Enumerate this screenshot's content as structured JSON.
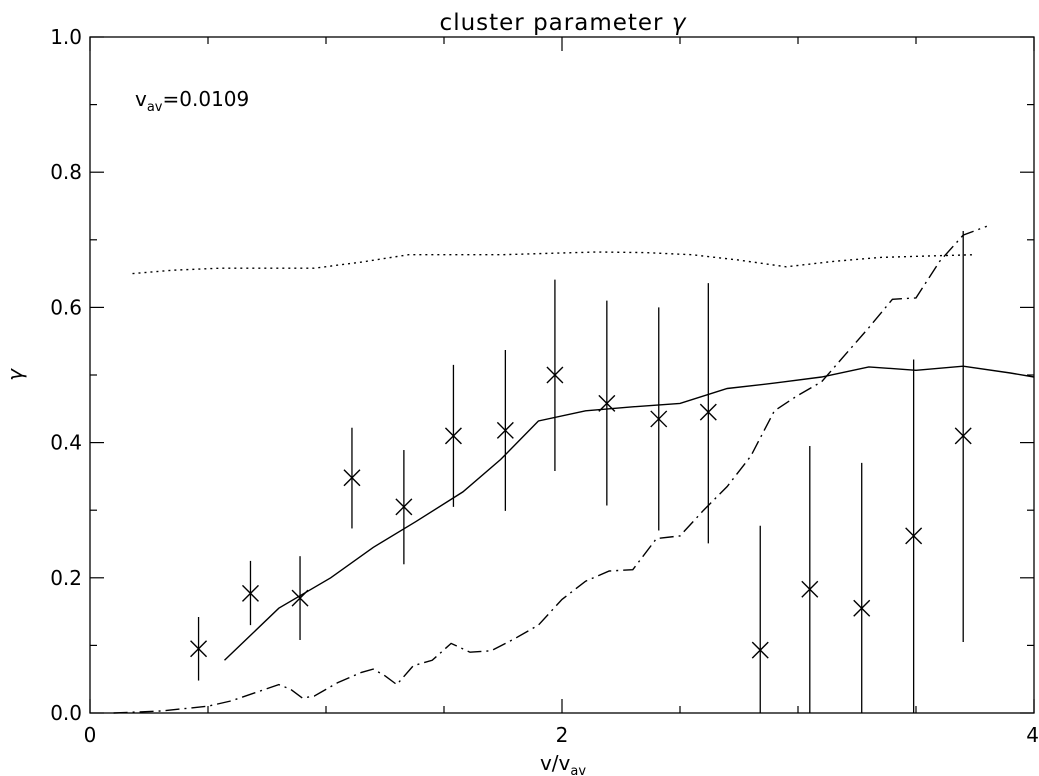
{
  "chart_data": {
    "type": "scatter",
    "title": "cluster parameter γ",
    "xlabel": {
      "base": "v/v",
      "sub": "av"
    },
    "ylabel": "γ",
    "annotation": {
      "base": "v",
      "sub": "av",
      "rest": "=0.0109"
    },
    "xlim": [
      0,
      4
    ],
    "ylim": [
      0,
      1.0
    ],
    "xticks": [
      0,
      2,
      4
    ],
    "xtick_labels": [
      "0",
      "2",
      "4"
    ],
    "yticks": [
      0.0,
      0.2,
      0.4,
      0.6,
      0.8,
      1.0
    ],
    "ytick_labels": [
      "0.0",
      "0.2",
      "0.4",
      "0.6",
      "0.8",
      "1.0"
    ],
    "grid": false,
    "points": [
      {
        "x": 0.46,
        "y": 0.095,
        "ylow": 0.048,
        "yhigh": 0.142
      },
      {
        "x": 0.68,
        "y": 0.177,
        "ylow": 0.13,
        "yhigh": 0.225
      },
      {
        "x": 0.89,
        "y": 0.17,
        "ylow": 0.108,
        "yhigh": 0.232
      },
      {
        "x": 1.11,
        "y": 0.348,
        "ylow": 0.273,
        "yhigh": 0.422
      },
      {
        "x": 1.33,
        "y": 0.305,
        "ylow": 0.22,
        "yhigh": 0.389
      },
      {
        "x": 1.54,
        "y": 0.41,
        "ylow": 0.305,
        "yhigh": 0.515
      },
      {
        "x": 1.76,
        "y": 0.418,
        "ylow": 0.299,
        "yhigh": 0.537
      },
      {
        "x": 1.97,
        "y": 0.5,
        "ylow": 0.358,
        "yhigh": 0.641
      },
      {
        "x": 2.19,
        "y": 0.458,
        "ylow": 0.307,
        "yhigh": 0.61
      },
      {
        "x": 2.41,
        "y": 0.435,
        "ylow": 0.27,
        "yhigh": 0.6
      },
      {
        "x": 2.62,
        "y": 0.445,
        "ylow": 0.251,
        "yhigh": 0.636
      },
      {
        "x": 2.84,
        "y": 0.093,
        "ylow": -0.09,
        "yhigh": 0.277
      },
      {
        "x": 3.05,
        "y": 0.183,
        "ylow": -0.03,
        "yhigh": 0.395
      },
      {
        "x": 3.27,
        "y": 0.155,
        "ylow": -0.06,
        "yhigh": 0.37
      },
      {
        "x": 3.49,
        "y": 0.262,
        "ylow": 0.0,
        "yhigh": 0.523
      },
      {
        "x": 3.7,
        "y": 0.41,
        "ylow": 0.105,
        "yhigh": 0.713
      }
    ],
    "lines": [
      {
        "style": "solid",
        "x": [
          0.57,
          0.8,
          1.02,
          1.2,
          1.38,
          1.58,
          1.74,
          1.9,
          2.1,
          2.3,
          2.5,
          2.7,
          2.9,
          3.1,
          3.3,
          3.5,
          3.7,
          3.9,
          4.0
        ],
        "y": [
          0.078,
          0.155,
          0.2,
          0.245,
          0.283,
          0.327,
          0.375,
          0.432,
          0.447,
          0.453,
          0.458,
          0.48,
          0.488,
          0.497,
          0.512,
          0.507,
          0.513,
          0.503,
          0.497
        ]
      },
      {
        "style": "dotted",
        "x": [
          0.18,
          0.35,
          0.55,
          0.75,
          0.95,
          1.15,
          1.35,
          1.55,
          1.75,
          1.95,
          2.15,
          2.35,
          2.55,
          2.75,
          2.95,
          3.15,
          3.35,
          3.55,
          3.75
        ],
        "y": [
          0.65,
          0.655,
          0.658,
          0.658,
          0.658,
          0.667,
          0.678,
          0.678,
          0.678,
          0.68,
          0.682,
          0.681,
          0.678,
          0.67,
          0.66,
          0.668,
          0.674,
          0.676,
          0.678
        ]
      },
      {
        "style": "dashdot",
        "x": [
          0.1,
          0.3,
          0.5,
          0.6,
          0.7,
          0.8,
          0.85,
          0.9,
          0.95,
          1.05,
          1.15,
          1.2,
          1.25,
          1.3,
          1.37,
          1.45,
          1.53,
          1.61,
          1.7,
          1.8,
          1.9,
          2.0,
          2.1,
          2.2,
          2.3,
          2.4,
          2.5,
          2.6,
          2.7,
          2.8,
          2.9,
          3.0,
          3.1,
          3.2,
          3.3,
          3.4,
          3.5,
          3.6,
          3.7,
          3.8
        ],
        "y": [
          0.0,
          0.003,
          0.01,
          0.018,
          0.03,
          0.042,
          0.035,
          0.022,
          0.025,
          0.045,
          0.06,
          0.065,
          0.055,
          0.042,
          0.07,
          0.078,
          0.103,
          0.09,
          0.092,
          0.11,
          0.13,
          0.168,
          0.195,
          0.21,
          0.212,
          0.258,
          0.262,
          0.3,
          0.335,
          0.38,
          0.447,
          0.47,
          0.49,
          0.53,
          0.57,
          0.612,
          0.614,
          0.668,
          0.707,
          0.72
        ]
      }
    ]
  }
}
